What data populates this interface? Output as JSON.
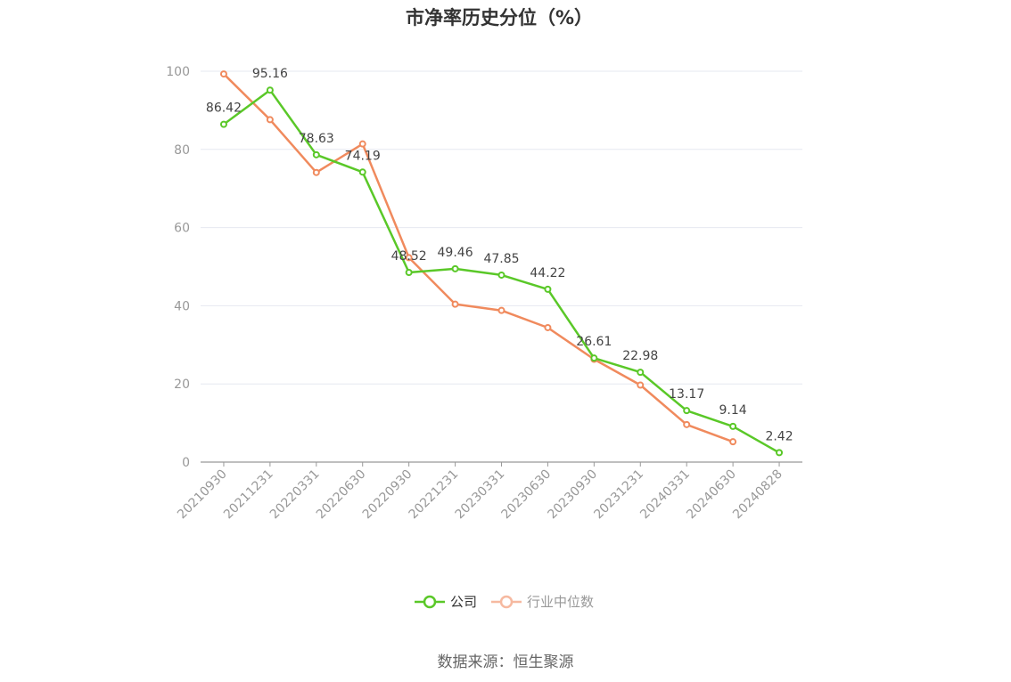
{
  "title": "市净率历史分位（%）",
  "source": "数据来源：恒生聚源",
  "chart_data": {
    "type": "line",
    "title": "市净率历史分位（%）",
    "xlabel": "",
    "ylabel": "",
    "categories": [
      "20210930",
      "20211231",
      "20220331",
      "20220630",
      "20220930",
      "20221231",
      "20230331",
      "20230630",
      "20230930",
      "20231231",
      "20240331",
      "20240630",
      "20240828"
    ],
    "ylim": [
      0,
      100
    ],
    "yticks": [
      0,
      20,
      40,
      60,
      80,
      100
    ],
    "grid": true,
    "legend_position": "bottom",
    "series": [
      {
        "name": "公司",
        "color": "#5ac828",
        "values": [
          86.42,
          95.16,
          78.63,
          74.19,
          48.52,
          49.46,
          47.85,
          44.22,
          26.61,
          22.98,
          13.17,
          9.14,
          2.42
        ],
        "labels": [
          "86.42",
          "95.16",
          "78.63",
          "74.19",
          "48.52",
          "49.46",
          "47.85",
          "44.22",
          "26.61",
          "22.98",
          "13.17",
          "9.14",
          "2.42"
        ]
      },
      {
        "name": "行业中位数",
        "color": "#f08a5d",
        "values": [
          99.3,
          87.6,
          74.1,
          81.4,
          52.3,
          40.4,
          38.8,
          34.4,
          26.3,
          19.7,
          9.6,
          5.2,
          null
        ]
      }
    ]
  }
}
